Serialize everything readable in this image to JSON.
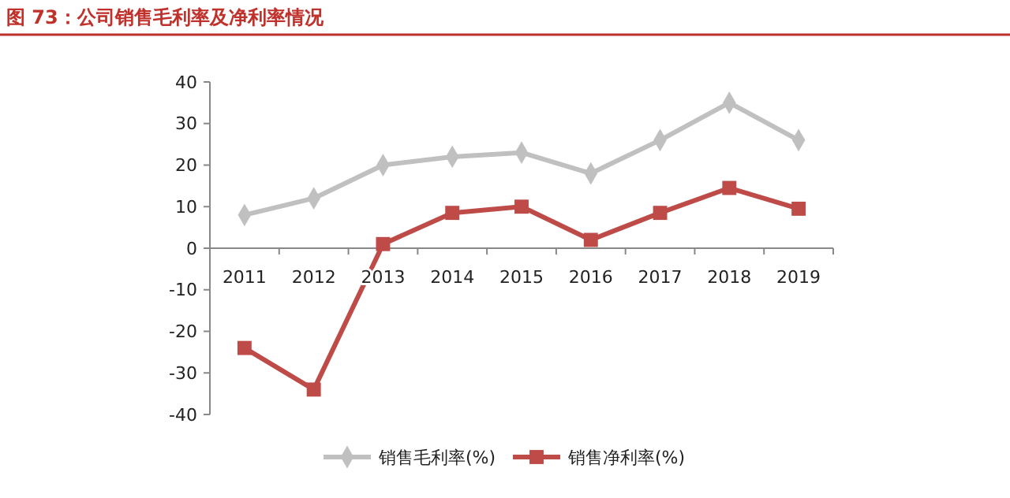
{
  "chart_data": {
    "type": "line",
    "title": "图 73：公司销售毛利率及净利率情况",
    "categories": [
      "2011",
      "2012",
      "2013",
      "2014",
      "2015",
      "2016",
      "2017",
      "2018",
      "2019"
    ],
    "series": [
      {
        "name": "销售毛利率(%)",
        "color": "#c0c0c0",
        "marker": "diamond",
        "values": [
          8,
          12,
          20,
          22,
          23,
          18,
          26,
          35,
          26
        ]
      },
      {
        "name": "销售净利率(%)",
        "color": "#be4b48",
        "marker": "square",
        "values": [
          -24,
          -34,
          1,
          8.5,
          10,
          2,
          8.5,
          14.5,
          9.5
        ]
      }
    ],
    "ylim": [
      -40,
      40
    ],
    "yticks": [
      -40,
      -30,
      -20,
      -10,
      0,
      10,
      20,
      30,
      40
    ],
    "grid": false,
    "legend": "bottom"
  }
}
